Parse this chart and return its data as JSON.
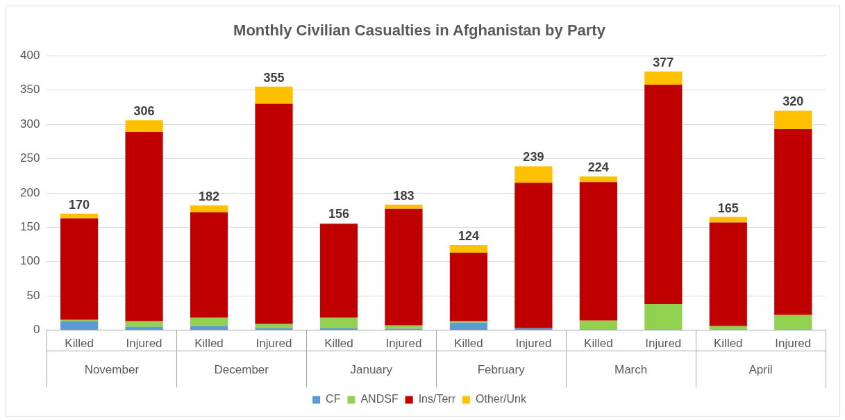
{
  "chart_data": {
    "type": "bar",
    "title": "Monthly Civilian Casualties in Afghanistan by Party",
    "categories": [
      "Killed",
      "Injured",
      "Killed",
      "Injured",
      "Killed",
      "Injured",
      "Killed",
      "Injured",
      "Killed",
      "Injured",
      "Killed",
      "Injured"
    ],
    "annotations": [
      "November",
      "December",
      "January",
      "February",
      "March",
      "April"
    ],
    "stacked": true,
    "series": [
      {
        "name": "CF",
        "color": "#5b9bd5",
        "values": [
          13,
          5,
          6,
          3,
          3,
          2,
          11,
          3,
          0,
          0,
          0,
          0
        ]
      },
      {
        "name": "ANDSF",
        "color": "#92d050",
        "values": [
          2,
          8,
          12,
          6,
          15,
          5,
          2,
          0,
          14,
          38,
          6,
          22
        ]
      },
      {
        "name": "Ins/Terr",
        "color": "#c00000",
        "values": [
          148,
          276,
          154,
          321,
          137,
          170,
          100,
          212,
          202,
          320,
          151,
          271
        ]
      },
      {
        "name": "Other/Unk",
        "color": "#ffc000",
        "values": [
          7,
          17,
          10,
          25,
          1,
          6,
          11,
          24,
          8,
          19,
          8,
          27
        ]
      }
    ],
    "totals": [
      "170",
      "306",
      "182",
      "355",
      "156",
      "183",
      "124",
      "239",
      "224",
      "377",
      "165",
      "320"
    ],
    "ylim": [
      0,
      400
    ],
    "yticks": [
      0,
      50,
      100,
      150,
      200,
      250,
      300,
      350,
      400
    ],
    "grid": "y",
    "legend": "bottom"
  }
}
